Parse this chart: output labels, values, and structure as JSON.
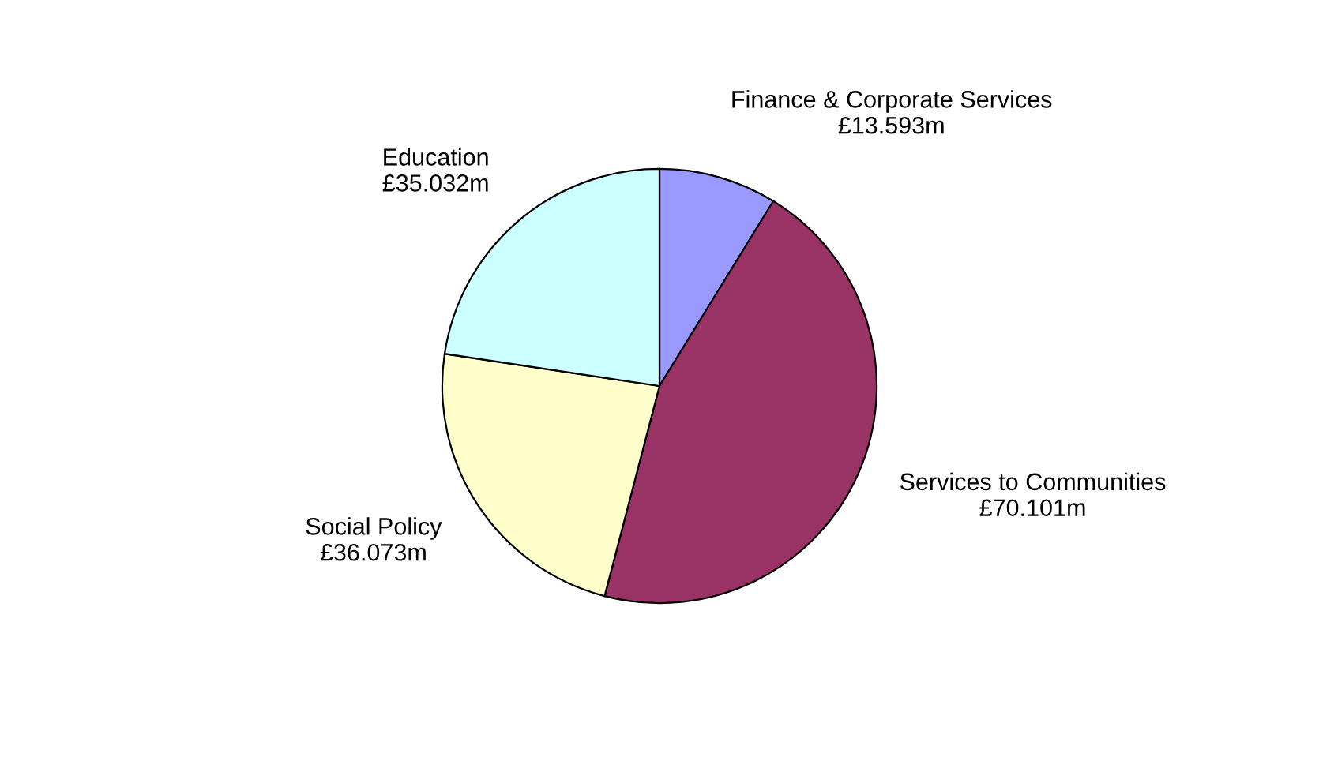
{
  "chart_data": {
    "type": "pie",
    "categories": [
      "Finance & Corporate Services",
      "Services to Communities",
      "Social Policy",
      "Education"
    ],
    "values": [
      13.593,
      70.101,
      36.073,
      35.032
    ],
    "value_labels": [
      "£13.593m",
      "£70.101m",
      "£36.073m",
      "£35.032m"
    ],
    "colors": [
      "#9999ff",
      "#993366",
      "#ffffcc",
      "#ccffff"
    ],
    "legend": false
  }
}
